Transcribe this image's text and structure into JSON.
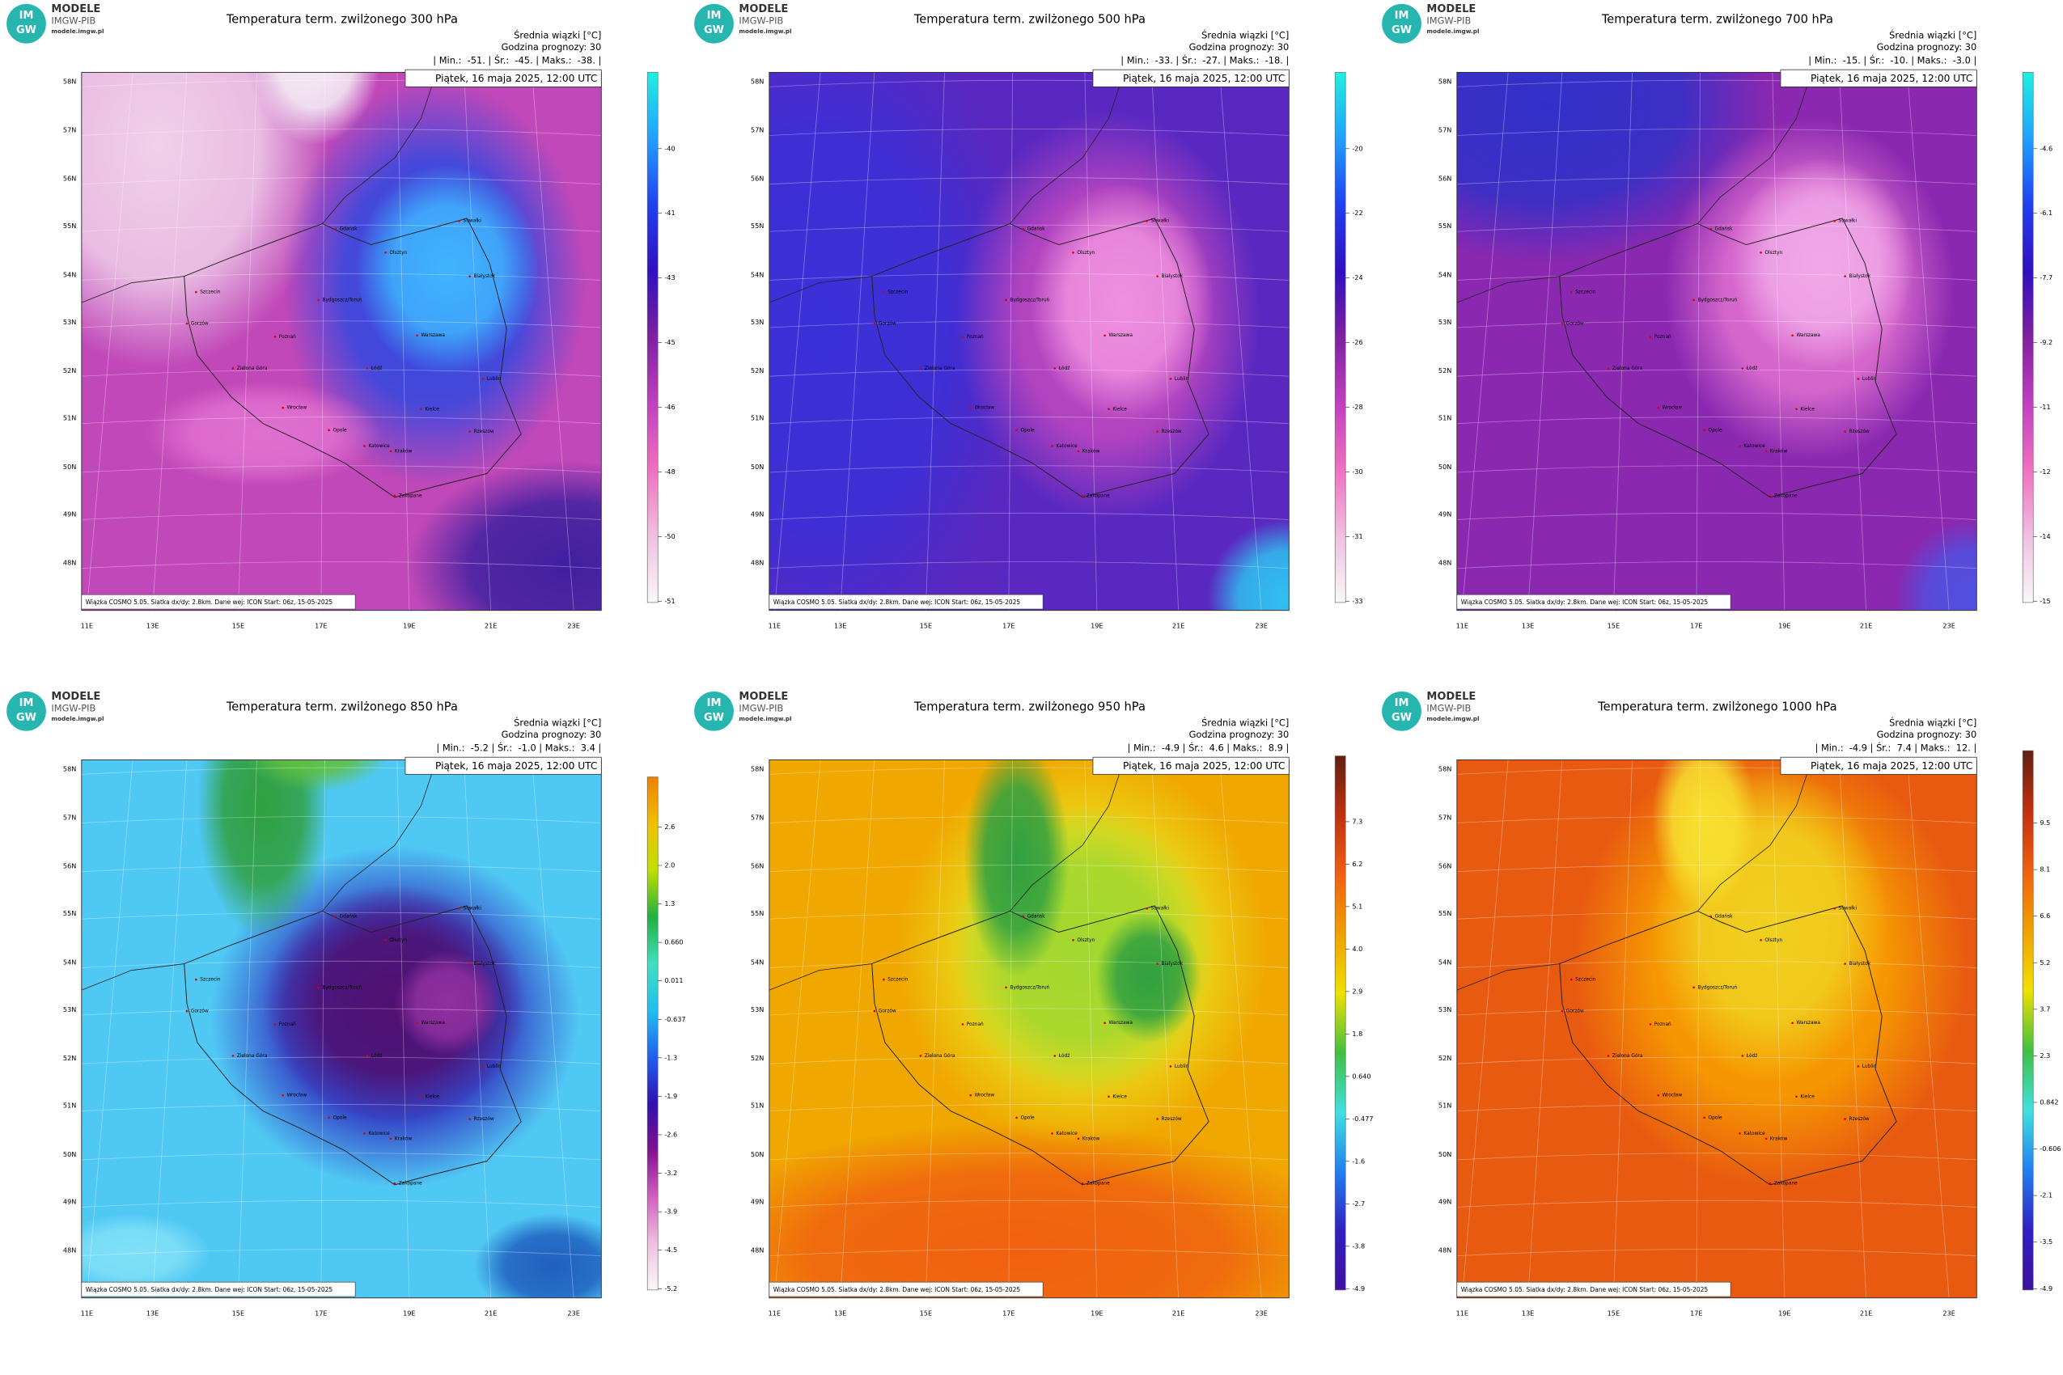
{
  "logo": {
    "mark_top": "IM",
    "mark_bottom": "GW",
    "name": "MODELE",
    "org": "IMGW-PIB",
    "url": "modele.imgw.pl"
  },
  "legend_unit": "Średnia wiązki [°C]",
  "forecast_hour": "Godzina prognozy: 30",
  "date": "Piątek, 16 maja 2025, 12:00 UTC",
  "footer": "Wiązka COSMO 5.05. Siatka dx/dy: 2.8km. Dane wej: ICON Start: 06z, 15-05-2025",
  "lat_labels": [
    "58N",
    "57N",
    "56N",
    "55N",
    "54N",
    "53N",
    "52N",
    "51N",
    "50N",
    "49N",
    "48N"
  ],
  "lon_labels": [
    "11E",
    "13E",
    "15E",
    "17E",
    "19E",
    "21E",
    "23E"
  ],
  "cities": [
    "Gdańsk",
    "Olsztyn",
    "Suwałki",
    "Białystok",
    "Bydgoszcz/Toruń",
    "Szczecin",
    "Gorzów",
    "Poznań",
    "Warszawa",
    "Zielona Góra",
    "Łódź",
    "Lublin",
    "Wrocław",
    "Kielce",
    "Opole",
    "Katowice",
    "Kraków",
    "Rzeszów",
    "Zakopane"
  ],
  "panels": [
    {
      "title": "Temperatura term. zwilżonego 300 hPa",
      "stats": "| Min.:  -51. | Śr.:  -45. | Maks.:  -38. |",
      "colorbar_ticks": [
        "-40",
        "-41",
        "-43",
        "-45",
        "-46",
        "-48",
        "-50",
        "-51"
      ]
    },
    {
      "title": "Temperatura term. zwilżonego 500 hPa",
      "stats": "| Min.:  -33. | Śr.:  -27. | Maks.:  -18. |",
      "colorbar_ticks": [
        "-20",
        "-22",
        "-24",
        "-26",
        "-28",
        "-30",
        "-31",
        "-33"
      ]
    },
    {
      "title": "Temperatura term. zwilżonego 700 hPa",
      "stats": "| Min.:  -15. | Śr.:  -10. | Maks.:  -3.0 |",
      "colorbar_ticks": [
        "-4.6",
        "-6.1",
        "-7.7",
        "-9.2",
        "-11",
        "-12",
        "-14",
        "-15"
      ]
    },
    {
      "title": "Temperatura term. zwilżonego 850 hPa",
      "stats": "| Min.:  -5.2 | Śr.:  -1.0 | Maks.:  3.4 |",
      "colorbar_ticks": [
        "2.6",
        "2.0",
        "1.3",
        "0.660",
        "0.011",
        "-0.637",
        "-1.3",
        "-1.9",
        "-2.6",
        "-3.2",
        "-3.9",
        "-4.5",
        "-5.2"
      ]
    },
    {
      "title": "Temperatura term. zwilżonego 950 hPa",
      "stats": "| Min.:  -4.9 | Śr.:  4.6 | Maks.:  8.9 |",
      "colorbar_ticks": [
        "7.3",
        "6.2",
        "5.1",
        "4.0",
        "2.9",
        "1.8",
        "0.640",
        "-0.477",
        "-1.6",
        "-2.7",
        "-3.8",
        "-4.9"
      ]
    },
    {
      "title": "Temperatura term. zwilżonego 1000 hPa",
      "stats": "| Min.:  -4.9 | Śr.:  7.4 | Maks.:  12. |",
      "colorbar_ticks": [
        "9.5",
        "8.1",
        "6.6",
        "5.2",
        "3.7",
        "2.3",
        "0.842",
        "-0.606",
        "-2.1",
        "-3.5",
        "-4.9"
      ]
    }
  ]
}
